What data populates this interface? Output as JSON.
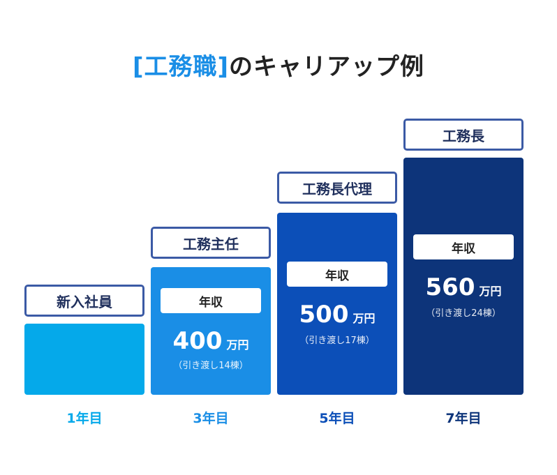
{
  "title": {
    "highlight": "[工務職]",
    "rest": "のキャリアップ例"
  },
  "colors": {
    "col1": "#05a9ea",
    "col2": "#1a8ee6",
    "col3": "#0c4fb8",
    "col4": "#0d347a",
    "border": "#3b5aa5"
  },
  "columns": [
    {
      "role": "新入社員",
      "year": "1年目",
      "salary_label": "",
      "salary_value": "",
      "salary_unit": "",
      "note": ""
    },
    {
      "role": "工務主任",
      "year": "3年目",
      "salary_label": "年収",
      "salary_value": "400",
      "salary_unit": "万円",
      "note": "（引き渡し14棟）"
    },
    {
      "role": "工務長代理",
      "year": "5年目",
      "salary_label": "年収",
      "salary_value": "500",
      "salary_unit": "万円",
      "note": "（引き渡し17棟）"
    },
    {
      "role": "工務長",
      "year": "7年目",
      "salary_label": "年収",
      "salary_value": "560",
      "salary_unit": "万円",
      "note": "（引き渡し24棟）"
    }
  ]
}
